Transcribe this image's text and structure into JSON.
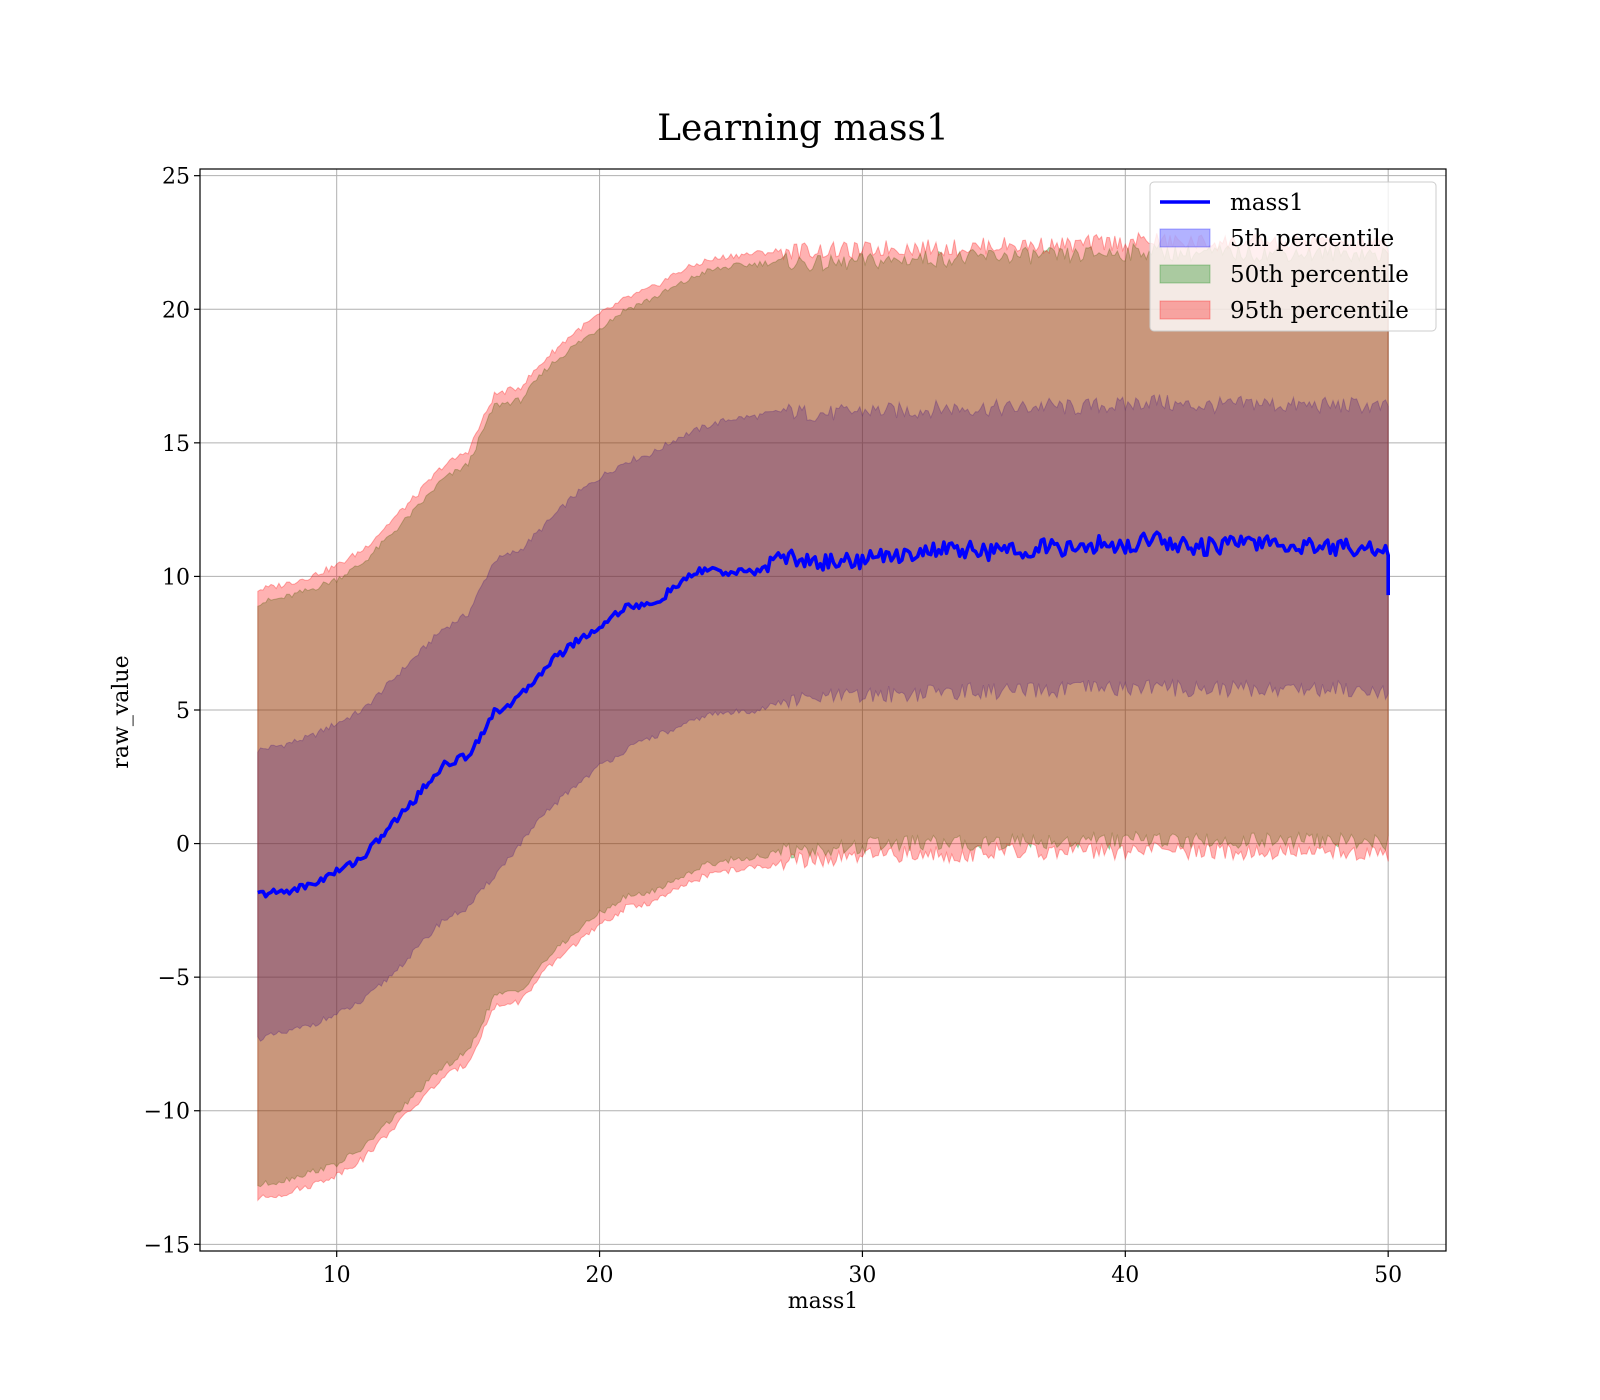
{
  "chart_data": {
    "type": "area",
    "title": "Learning mass1",
    "xlabel": "mass1",
    "ylabel": "raw_value",
    "xlim": [
      4.8,
      52.2
    ],
    "ylim": [
      -15.25,
      25.25
    ],
    "xticks": [
      10,
      20,
      30,
      40,
      50
    ],
    "yticks": [
      -15,
      -10,
      -5,
      0,
      5,
      10,
      15,
      20,
      25
    ],
    "xtick_labels": [
      "10",
      "20",
      "30",
      "40",
      "50"
    ],
    "ytick_labels": [
      "−15",
      "−10",
      "−5",
      "0",
      "5",
      "10",
      "15",
      "20",
      "25"
    ],
    "grid": true,
    "legend_position": "top-right",
    "x": [
      7,
      8,
      9,
      10,
      11,
      12,
      13,
      14,
      15,
      16,
      17,
      18,
      19,
      20,
      21,
      22,
      23,
      24,
      25,
      26,
      27,
      28,
      29,
      30,
      31,
      32,
      33,
      34,
      35,
      36,
      37,
      38,
      39,
      40,
      41,
      42,
      43,
      44,
      45,
      46,
      47,
      48,
      49,
      50
    ],
    "series": [
      {
        "name": "mass1",
        "kind": "line",
        "color": "#0000ff",
        "values": [
          -1.9,
          -1.8,
          -1.55,
          -1.05,
          -0.5,
          0.6,
          1.7,
          2.9,
          3.3,
          4.9,
          5.5,
          6.7,
          7.5,
          8.1,
          8.9,
          8.9,
          9.7,
          10.3,
          10.1,
          10.2,
          10.8,
          10.5,
          10.6,
          10.6,
          10.8,
          10.9,
          11.0,
          11.0,
          10.9,
          11.0,
          11.1,
          11.0,
          11.2,
          11.1,
          11.5,
          11.2,
          11.1,
          11.2,
          11.3,
          11.1,
          11.2,
          11.1,
          11.1,
          11.0
        ]
      },
      {
        "name": "5th percentile",
        "kind": "band",
        "color": "#0000ff",
        "lower": [
          -7.3,
          -7.1,
          -6.8,
          -6.4,
          -5.9,
          -5.0,
          -4.0,
          -2.9,
          -2.4,
          -1.2,
          0.0,
          1.2,
          2.1,
          2.9,
          3.5,
          4.0,
          4.3,
          4.8,
          4.9,
          5.0,
          5.3,
          5.4,
          5.5,
          5.5,
          5.6,
          5.6,
          5.7,
          5.7,
          5.7,
          5.7,
          5.7,
          5.8,
          5.8,
          5.8,
          5.9,
          5.8,
          5.8,
          5.8,
          5.8,
          5.8,
          5.8,
          5.8,
          5.8,
          5.7
        ],
        "upper": [
          3.5,
          3.7,
          4.0,
          4.5,
          5.0,
          6.0,
          7.0,
          8.0,
          8.6,
          10.6,
          11.0,
          12.0,
          13.0,
          13.7,
          14.3,
          14.6,
          15.2,
          15.6,
          15.9,
          16.0,
          16.2,
          16.1,
          16.1,
          16.2,
          16.2,
          16.2,
          16.3,
          16.3,
          16.3,
          16.3,
          16.4,
          16.3,
          16.4,
          16.4,
          16.6,
          16.4,
          16.4,
          16.4,
          16.5,
          16.4,
          16.4,
          16.4,
          16.4,
          16.3
        ]
      },
      {
        "name": "50th percentile",
        "kind": "band",
        "color": "#008000",
        "lower": [
          -12.8,
          -12.6,
          -12.3,
          -12.0,
          -11.4,
          -10.4,
          -9.4,
          -8.4,
          -7.8,
          -5.7,
          -5.5,
          -4.3,
          -3.4,
          -2.6,
          -2.0,
          -1.8,
          -1.3,
          -0.8,
          -0.6,
          -0.5,
          -0.3,
          -0.2,
          -0.2,
          -0.1,
          0.0,
          0.0,
          0.0,
          0.0,
          0.1,
          0.1,
          0.1,
          0.1,
          0.1,
          0.1,
          0.2,
          0.1,
          0.1,
          0.1,
          0.1,
          0.1,
          0.1,
          0.1,
          0.1,
          0.0
        ],
        "upper": [
          9.0,
          9.2,
          9.5,
          9.9,
          10.5,
          11.5,
          12.5,
          13.6,
          14.2,
          16.4,
          16.6,
          17.8,
          18.6,
          19.3,
          20.0,
          20.4,
          20.9,
          21.4,
          21.6,
          21.7,
          21.8,
          21.7,
          21.7,
          21.8,
          21.8,
          21.9,
          21.9,
          21.9,
          22.0,
          22.0,
          22.0,
          22.0,
          22.1,
          22.1,
          22.2,
          22.1,
          22.1,
          22.1,
          22.1,
          22.1,
          22.1,
          22.1,
          22.1,
          22.0
        ]
      },
      {
        "name": "95th percentile",
        "kind": "band",
        "color": "#ff0000",
        "lower": [
          -13.3,
          -13.1,
          -12.8,
          -12.4,
          -11.8,
          -10.8,
          -9.8,
          -8.8,
          -8.2,
          -6.1,
          -5.9,
          -4.7,
          -3.8,
          -3.1,
          -2.4,
          -2.2,
          -1.7,
          -1.2,
          -1.0,
          -0.9,
          -0.7,
          -0.6,
          -0.6,
          -0.5,
          -0.4,
          -0.4,
          -0.4,
          -0.4,
          -0.3,
          -0.3,
          -0.3,
          -0.3,
          -0.3,
          -0.3,
          -0.2,
          -0.3,
          -0.3,
          -0.3,
          -0.3,
          -0.3,
          -0.3,
          -0.3,
          -0.3,
          -0.4
        ],
        "upper": [
          9.5,
          9.7,
          10.0,
          10.4,
          11.0,
          12.0,
          13.0,
          14.1,
          14.7,
          16.8,
          17.1,
          18.2,
          19.1,
          19.8,
          20.4,
          20.8,
          21.4,
          21.8,
          22.0,
          22.1,
          22.2,
          22.2,
          22.2,
          22.2,
          22.3,
          22.3,
          22.3,
          22.3,
          22.4,
          22.4,
          22.4,
          22.4,
          22.5,
          22.5,
          22.6,
          22.5,
          22.5,
          22.5,
          22.5,
          22.5,
          22.5,
          22.5,
          22.5,
          22.4
        ]
      }
    ]
  }
}
